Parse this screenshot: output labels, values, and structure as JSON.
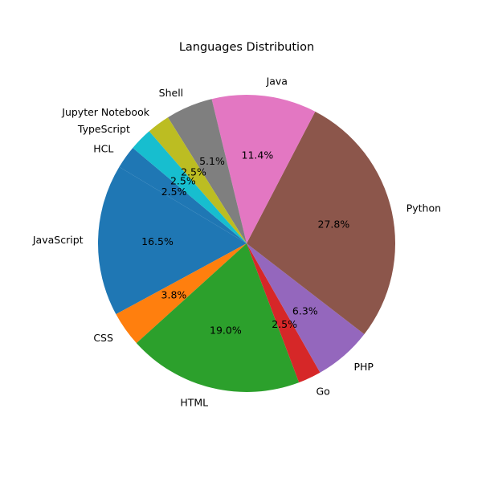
{
  "chart_data": {
    "type": "pie",
    "title": "Languages Distribution",
    "start_angle": 140,
    "counterclockwise": true,
    "slices": [
      {
        "label": "HCL",
        "value": 2.5,
        "pct_label": "2.5%",
        "color": "#1f77b4"
      },
      {
        "label": "JavaScript",
        "value": 16.5,
        "pct_label": "16.5%",
        "color": "#1f77b4"
      },
      {
        "label": "CSS",
        "value": 3.8,
        "pct_label": "3.8%",
        "color": "#ff7f0e"
      },
      {
        "label": "HTML",
        "value": 19.0,
        "pct_label": "19.0%",
        "color": "#2ca02c"
      },
      {
        "label": "Go",
        "value": 2.5,
        "pct_label": "2.5%",
        "color": "#d62728"
      },
      {
        "label": "PHP",
        "value": 6.3,
        "pct_label": "6.3%",
        "color": "#9467bd"
      },
      {
        "label": "Python",
        "value": 27.8,
        "pct_label": "27.8%",
        "color": "#8c564b"
      },
      {
        "label": "Java",
        "value": 11.4,
        "pct_label": "11.4%",
        "color": "#e377c2"
      },
      {
        "label": "Shell",
        "value": 5.1,
        "pct_label": "5.1%",
        "color": "#7f7f7f"
      },
      {
        "label": "Jupyter Notebook",
        "value": 2.5,
        "pct_label": "2.5%",
        "color": "#bcbd22"
      },
      {
        "label": "TypeScript",
        "value": 2.5,
        "pct_label": "2.5%",
        "color": "#17becf"
      }
    ]
  }
}
